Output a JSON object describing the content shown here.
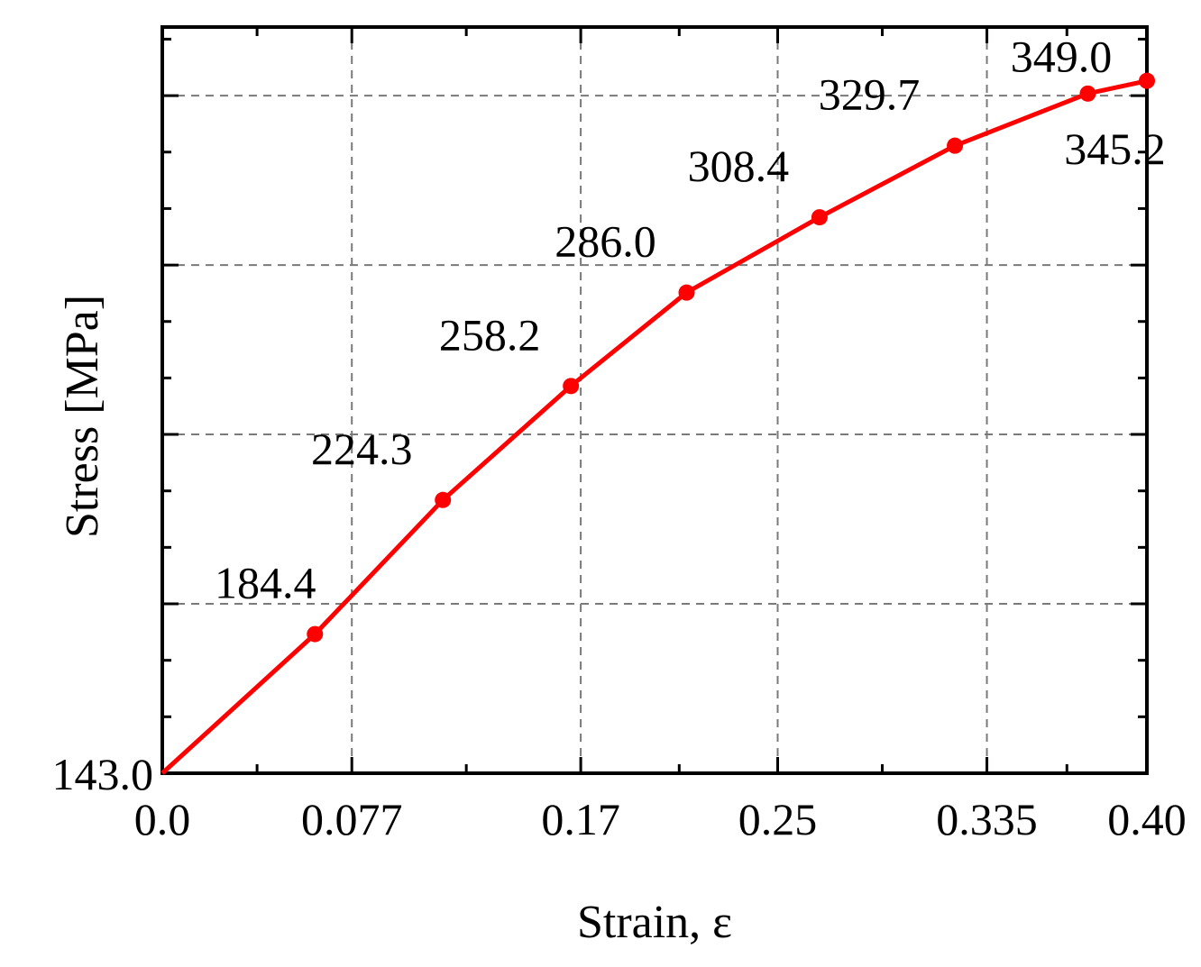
{
  "chart_data": {
    "type": "line",
    "title": "",
    "xlabel": "Strain, ε",
    "ylabel": "Stress [MPa]",
    "xlim": [
      0.0,
      0.4
    ],
    "ylim": [
      143.0,
      365.0
    ],
    "grid": true,
    "colors": {
      "series": "#ff0000",
      "grid": "#7a7a7a",
      "frame": "#000000"
    },
    "x_ticks": [
      {
        "value": 0.0,
        "label": "0.0"
      },
      {
        "value": 0.077,
        "label": "0.077"
      },
      {
        "value": 0.17,
        "label": "0.17"
      },
      {
        "value": 0.25,
        "label": "0.25"
      },
      {
        "value": 0.335,
        "label": "0.335"
      },
      {
        "value": 0.4,
        "label": "0.40"
      }
    ],
    "y_ticks": [
      {
        "value": 143.0,
        "label": "143.0"
      }
    ],
    "y_grid_values": [
      193.4,
      243.8,
      294.2,
      344.6
    ],
    "series": [
      {
        "x": [
          0.0,
          0.062,
          0.114,
          0.166,
          0.213,
          0.267,
          0.322,
          0.376,
          0.4
        ],
        "y": [
          143.0,
          184.4,
          224.3,
          258.2,
          286.0,
          308.4,
          329.7,
          345.2,
          349.0
        ],
        "labels": [
          "",
          "184.4",
          "224.3",
          "258.2",
          "286.0",
          "308.4",
          "329.7",
          "345.2",
          "349.0"
        ]
      }
    ]
  }
}
